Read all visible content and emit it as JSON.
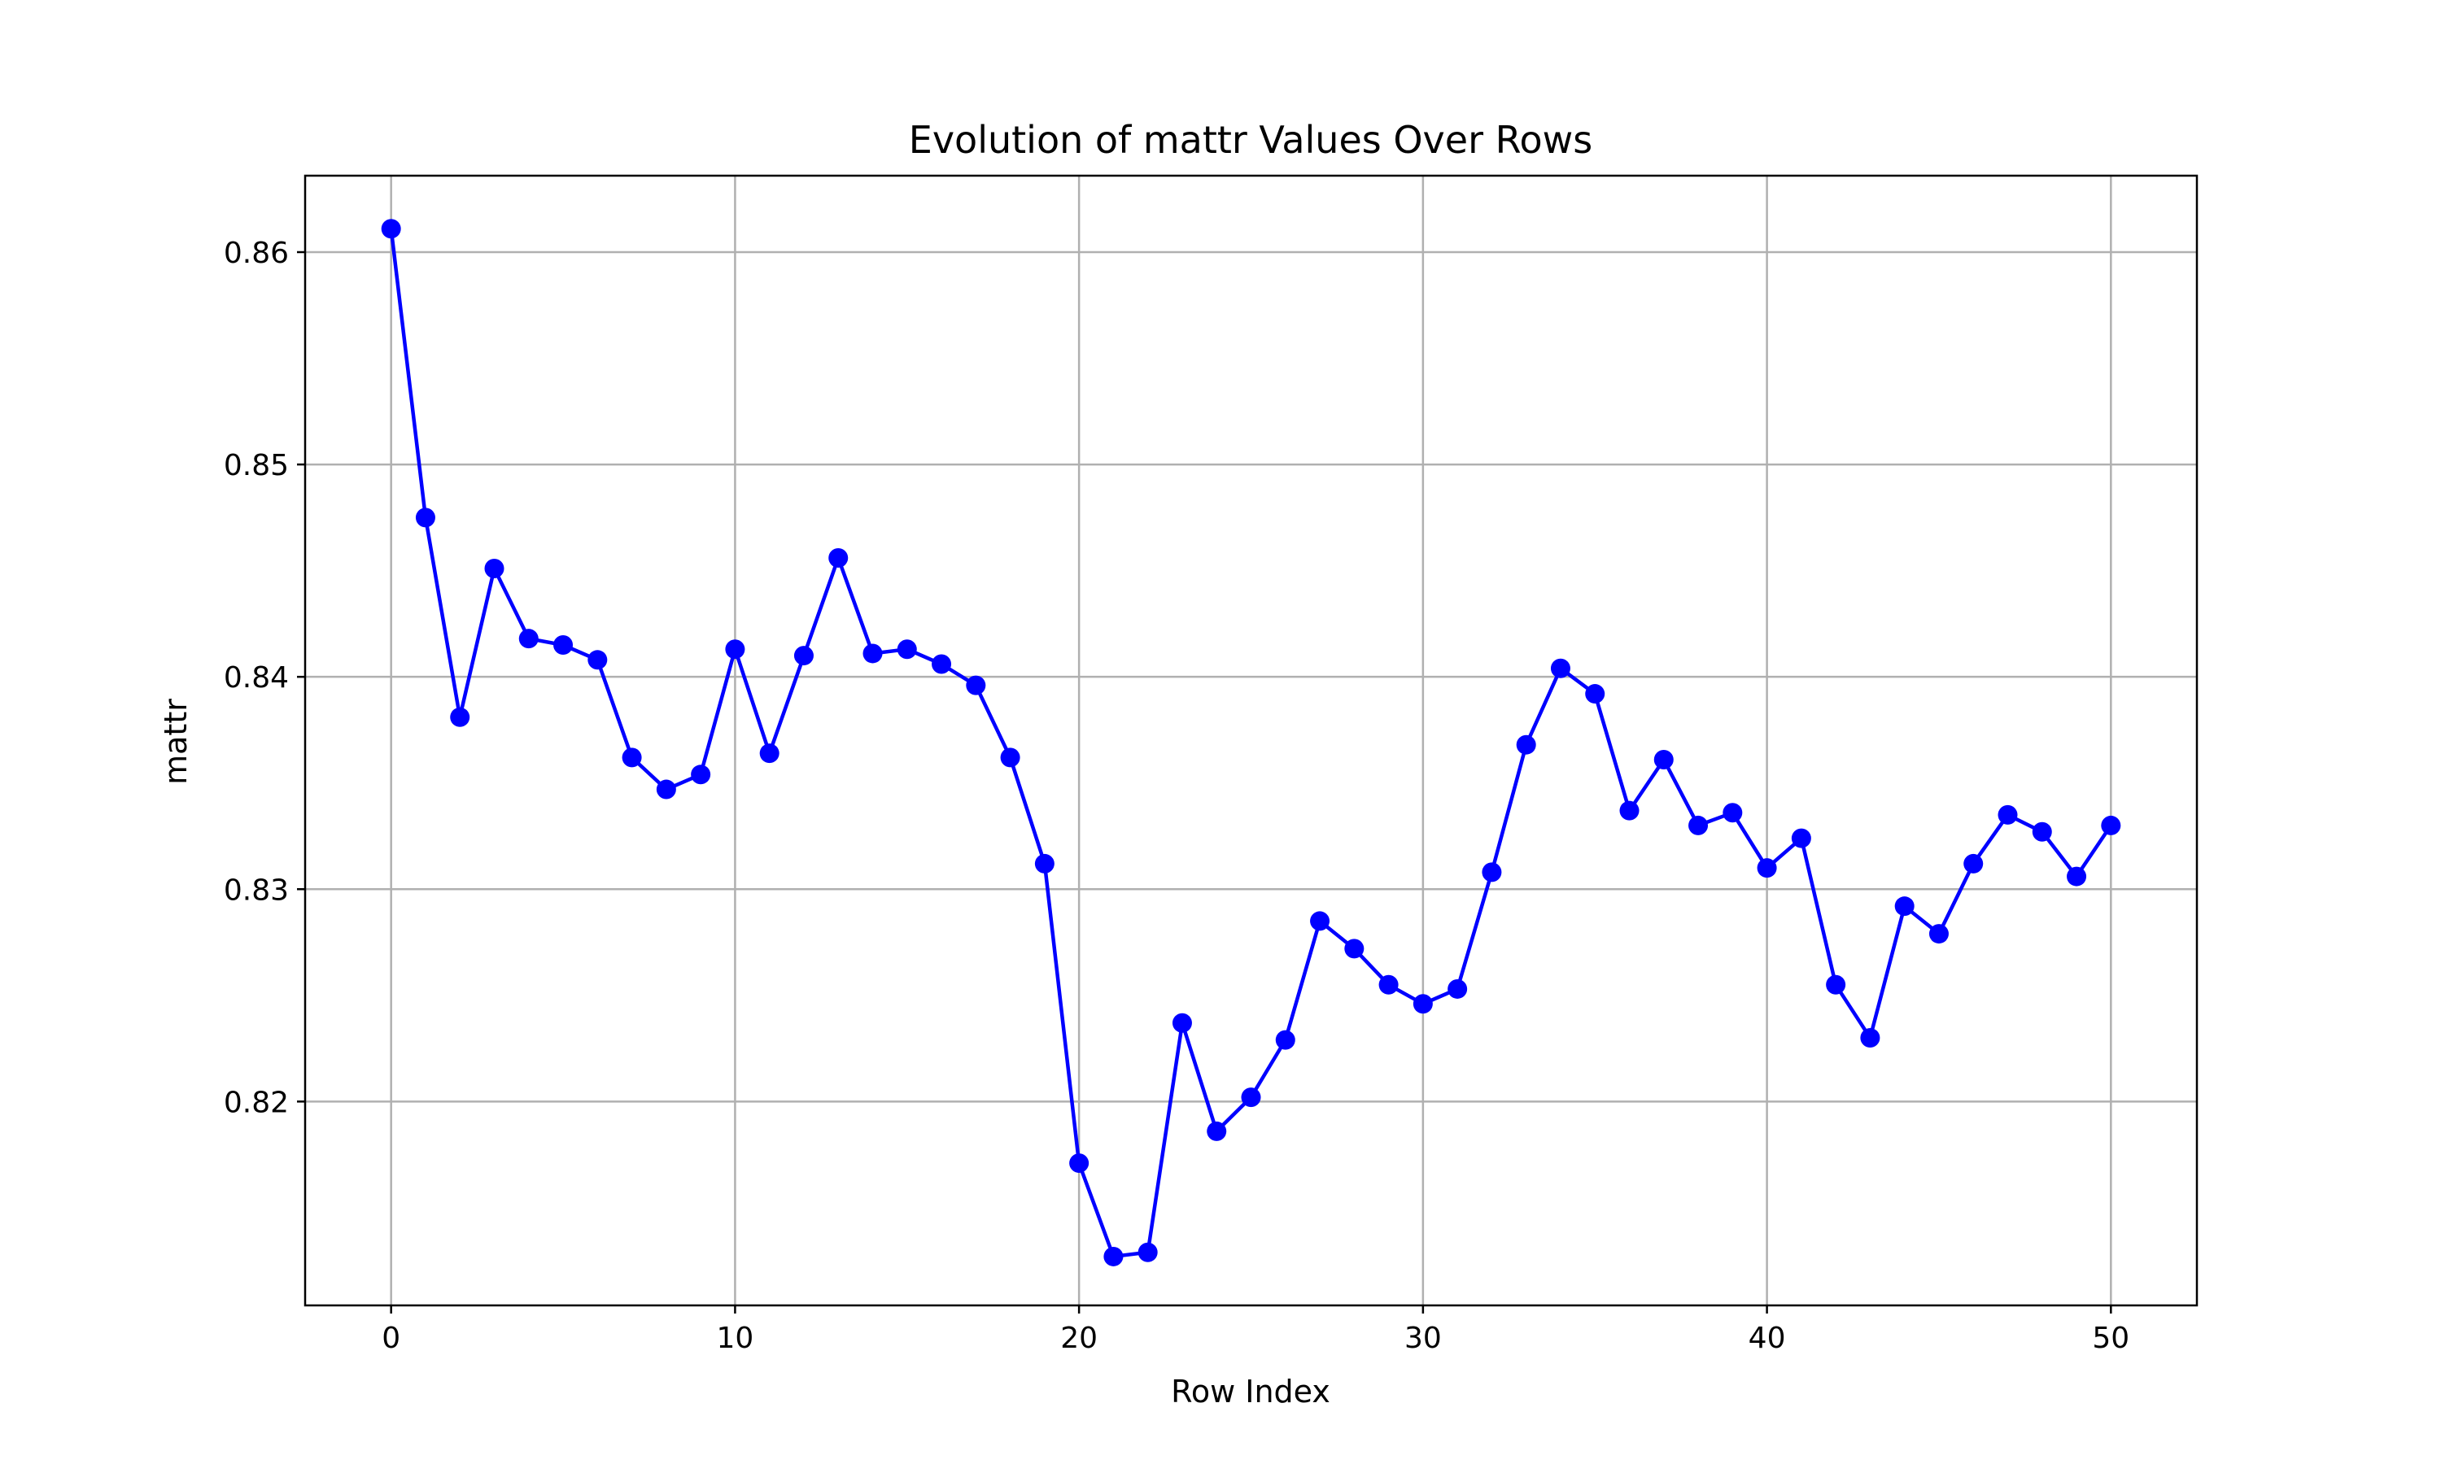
{
  "chart_data": {
    "type": "line",
    "title": "Evolution of mattr Values Over Rows",
    "xlabel": "Row Index",
    "ylabel": "mattr",
    "xlim": [
      -2.5,
      52.5
    ],
    "ylim": [
      0.8104,
      0.8636
    ],
    "xticks": [
      0,
      10,
      20,
      30,
      40,
      50
    ],
    "yticks": [
      0.82,
      0.83,
      0.84,
      0.85,
      0.86
    ],
    "xtick_labels": [
      "0",
      "10",
      "20",
      "30",
      "40",
      "50"
    ],
    "ytick_labels": [
      "0.82",
      "0.83",
      "0.84",
      "0.85",
      "0.86"
    ],
    "grid": true,
    "legend": "none",
    "line_color": "#0000ff",
    "marker": "circle",
    "series": [
      {
        "x": [
          0,
          1,
          2,
          3,
          4,
          5,
          6,
          7,
          8,
          9,
          10,
          11,
          12,
          13,
          14,
          15,
          16,
          17,
          18,
          19,
          20,
          21,
          22,
          23,
          24,
          25,
          26,
          27,
          28,
          29,
          30,
          31,
          32,
          33,
          34,
          35,
          36,
          37,
          38,
          39,
          40,
          41,
          42,
          43,
          44,
          45,
          46,
          47,
          48,
          49,
          50
        ],
        "values": [
          0.8611,
          0.8475,
          0.8381,
          0.8451,
          0.8418,
          0.8415,
          0.8408,
          0.8362,
          0.8347,
          0.8354,
          0.8413,
          0.8364,
          0.841,
          0.8456,
          0.8411,
          0.8413,
          0.8406,
          0.8396,
          0.8362,
          0.8312,
          0.8171,
          0.8127,
          0.8129,
          0.8237,
          0.8186,
          0.8202,
          0.8229,
          0.8285,
          0.8272,
          0.8255,
          0.8246,
          0.8253,
          0.8308,
          0.8368,
          0.8404,
          0.8392,
          0.8337,
          0.8361,
          0.833,
          0.8336,
          0.831,
          0.8324,
          0.8255,
          0.823,
          0.8292,
          0.8279,
          0.8312,
          0.8335,
          0.8327,
          0.8306,
          0.833
        ]
      }
    ]
  }
}
